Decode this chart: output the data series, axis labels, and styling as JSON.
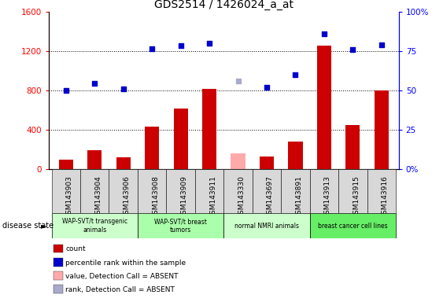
{
  "title": "GDS2514 / 1426024_a_at",
  "samples": [
    "GSM143903",
    "GSM143904",
    "GSM143906",
    "GSM143908",
    "GSM143909",
    "GSM143911",
    "GSM143330",
    "GSM143697",
    "GSM143891",
    "GSM143913",
    "GSM143915",
    "GSM143916"
  ],
  "count_values": [
    100,
    190,
    120,
    430,
    620,
    820,
    null,
    130,
    280,
    1260,
    450,
    800
  ],
  "count_absent": [
    null,
    null,
    null,
    null,
    null,
    null,
    160,
    null,
    null,
    null,
    null,
    null
  ],
  "rank_values": [
    800,
    870,
    820,
    1230,
    1260,
    1280,
    null,
    830,
    960,
    1380,
    1220,
    1270
  ],
  "rank_absent": [
    null,
    null,
    null,
    null,
    null,
    null,
    900,
    null,
    null,
    null,
    null,
    null
  ],
  "left_ylim": [
    0,
    1600
  ],
  "left_yticks": [
    0,
    400,
    800,
    1200,
    1600
  ],
  "right_ylim": [
    0,
    100
  ],
  "right_yticks": [
    0,
    25,
    50,
    75,
    100
  ],
  "right_yticklabels": [
    "0%",
    "25",
    "50",
    "75",
    "100%"
  ],
  "groups": [
    {
      "label": "WAP-SVT/t transgenic\nanimals",
      "start": 0,
      "end": 3,
      "color": "#ccffcc"
    },
    {
      "label": "WAP-SVT/t breast\ntumors",
      "start": 3,
      "end": 6,
      "color": "#aaffaa"
    },
    {
      "label": "normal NMRI animals",
      "start": 6,
      "end": 9,
      "color": "#ccffcc"
    },
    {
      "label": "breast cancer cell lines",
      "start": 9,
      "end": 12,
      "color": "#66ee66"
    }
  ],
  "bar_color": "#cc0000",
  "bar_absent_color": "#ffaaaa",
  "rank_color": "#0000cc",
  "rank_absent_color": "#aaaacc",
  "bar_width": 0.5,
  "disease_state_label": "disease state",
  "legend_items": [
    {
      "label": "count",
      "color": "#cc0000"
    },
    {
      "label": "percentile rank within the sample",
      "color": "#0000cc"
    },
    {
      "label": "value, Detection Call = ABSENT",
      "color": "#ffaaaa"
    },
    {
      "label": "rank, Detection Call = ABSENT",
      "color": "#aaaacc"
    }
  ],
  "tick_label_fontsize": 6.5,
  "title_fontsize": 10,
  "grid_dotted_vals": [
    400,
    800,
    1200
  ]
}
